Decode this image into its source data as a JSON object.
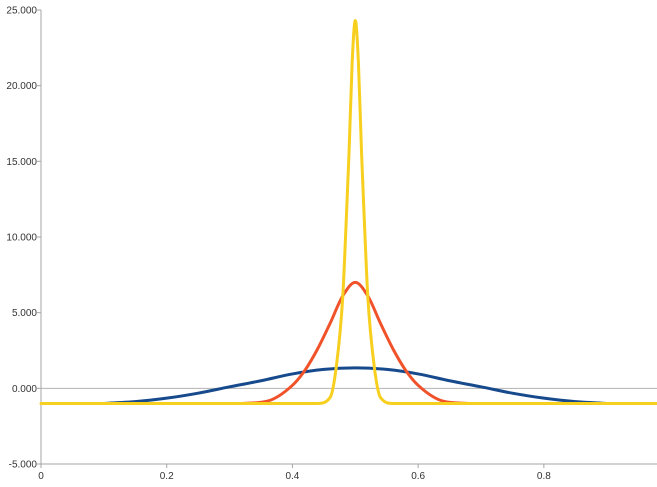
{
  "chart_data": {
    "type": "line",
    "title": "",
    "xlabel": "",
    "ylabel": "",
    "xlim": [
      0,
      0.98
    ],
    "ylim": [
      -5,
      25
    ],
    "x_ticks": [
      0,
      0.2,
      0.4,
      0.6,
      0.8
    ],
    "x_tick_labels": [
      "0",
      "0.2",
      "0.4",
      "0.6",
      "0.8"
    ],
    "y_ticks": [
      -5,
      0,
      5,
      10,
      15,
      20,
      25
    ],
    "y_tick_labels": [
      "-5.000",
      "0.000",
      "5.000",
      "10.000",
      "15.000",
      "20.000",
      "25.000"
    ],
    "grid": false,
    "legend": "none",
    "series": [
      {
        "color": "#174a8c",
        "x": [
          0.1,
          0.15,
          0.2,
          0.25,
          0.3,
          0.35,
          0.4,
          0.45,
          0.5,
          0.55,
          0.6,
          0.65,
          0.7,
          0.75,
          0.8,
          0.85,
          0.9
        ],
        "values": [
          -1.0,
          -0.88,
          -0.65,
          -0.32,
          0.1,
          0.5,
          0.95,
          1.25,
          1.35,
          1.25,
          0.95,
          0.5,
          0.1,
          -0.32,
          -0.65,
          -0.88,
          -1.0
        ]
      },
      {
        "color": "#f0522a",
        "x": [
          0.32,
          0.36,
          0.4,
          0.42,
          0.44,
          0.46,
          0.48,
          0.5,
          0.52,
          0.54,
          0.56,
          0.58,
          0.6,
          0.64,
          0.68
        ],
        "values": [
          -1.0,
          -0.85,
          0.2,
          1.2,
          2.6,
          4.3,
          6.1,
          7.0,
          6.1,
          4.3,
          2.6,
          1.2,
          0.2,
          -0.85,
          -1.0
        ]
      },
      {
        "color": "#f7cf1f",
        "x": [
          0,
          0.44,
          0.46,
          0.47,
          0.48,
          0.485,
          0.49,
          0.495,
          0.5,
          0.505,
          0.51,
          0.515,
          0.52,
          0.53,
          0.54,
          0.56,
          0.98
        ],
        "values": [
          -1.0,
          -1.0,
          -0.6,
          1.5,
          6.0,
          10.5,
          15.5,
          21.5,
          24.3,
          21.5,
          15.5,
          10.5,
          6.0,
          1.5,
          -0.6,
          -1.0,
          -1.0
        ]
      }
    ]
  }
}
